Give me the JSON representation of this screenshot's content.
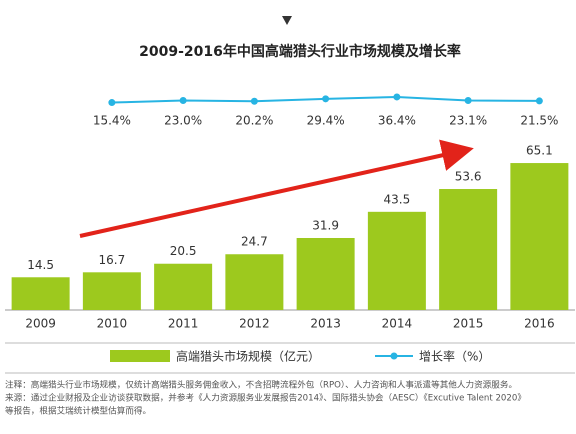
{
  "chart_data": {
    "type": "bar",
    "title": "2009-2016年中国高端猎头行业市场规模及增长率",
    "categories": [
      "2009",
      "2010",
      "2011",
      "2012",
      "2013",
      "2014",
      "2015",
      "2016"
    ],
    "series": [
      {
        "name": "高端猎头市场规模（亿元）",
        "type": "bar",
        "color": "#9dc91e",
        "values": [
          14.5,
          16.7,
          20.5,
          24.7,
          31.9,
          43.5,
          53.6,
          65.1
        ]
      },
      {
        "name": "增长率（%）",
        "type": "line",
        "axis": "y2",
        "color": "#27b4e3",
        "values": [
          null,
          15.4,
          23.0,
          20.2,
          29.4,
          36.4,
          23.1,
          21.5
        ],
        "value_labels": [
          null,
          "15.4%",
          "23.0%",
          "20.2%",
          "29.4%",
          "36.4%",
          "23.1%",
          "21.5%"
        ]
      }
    ],
    "ylim": [
      0,
      70
    ],
    "y2lim": [
      10,
      40
    ],
    "notes": [
      "注释：高端猎头行业市场规模，仅统计高端猎头服务佣金收入，不含招聘流程外包（RPO）、人力咨询和人事派遣等其他人力资源服务。",
      "来源：通过企业财报及企业访谈获取数据，并参考《人力资源服务业发展报告2014》、国际猎头协会（AESC）《Excutive Talent 2020》",
      "等报告，根据艾瑞统计模型估算而得。"
    ]
  }
}
